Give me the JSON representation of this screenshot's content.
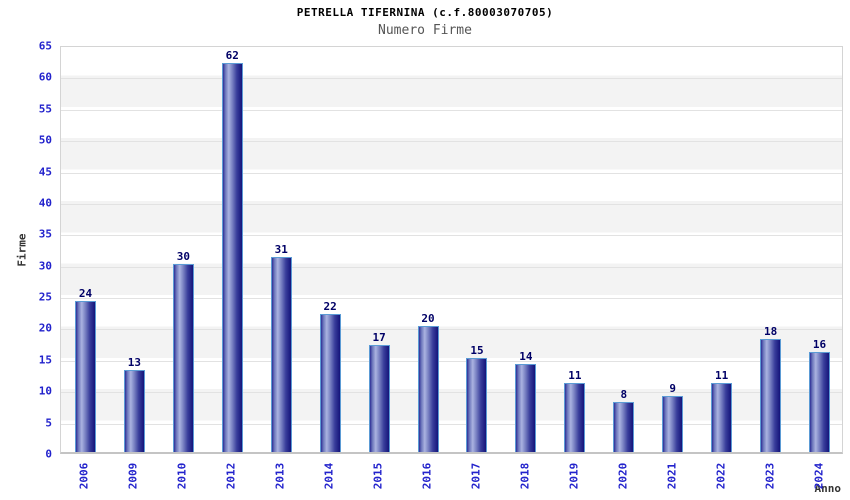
{
  "header": {
    "title": "PETRELLA TIFERNINA (c.f.80003070705)",
    "subtitle": "Numero Firme"
  },
  "chart_data": {
    "type": "bar",
    "title": "PETRELLA TIFERNINA (c.f.80003070705)",
    "subtitle": "Numero Firme",
    "xlabel": "Anno",
    "ylabel": "Firme",
    "categories": [
      "2006",
      "2009",
      "2010",
      "2012",
      "2013",
      "2014",
      "2015",
      "2016",
      "2017",
      "2018",
      "2019",
      "2020",
      "2021",
      "2022",
      "2023",
      "2024"
    ],
    "values": [
      24,
      13,
      30,
      62,
      31,
      22,
      17,
      20,
      15,
      14,
      11,
      8,
      9,
      11,
      18,
      16
    ],
    "ylim": [
      0,
      65
    ],
    "ytick_step": 5,
    "grid": true,
    "legend": "none",
    "colors": {
      "title_color": "#000000",
      "subtitle_color": "#555555",
      "tick_label": "#2222cc",
      "value_label": "#000066",
      "axis_title_color": "#333333",
      "band_white": "#ffffff",
      "band_gray": "#f3f3f3",
      "grid_line": "#e2e2e2",
      "plot_border": "#d4d4d4",
      "axis_line": "#c4c4c4",
      "bar_border": "#5b9bd5",
      "bar_gradient_stops": [
        "#2e2e96",
        "#6a74ba",
        "#aab3e0",
        "#7b84c4",
        "#3a3f9c",
        "#14147a"
      ],
      "bar_gradient_positions": [
        0,
        12,
        30,
        48,
        72,
        100
      ]
    }
  }
}
